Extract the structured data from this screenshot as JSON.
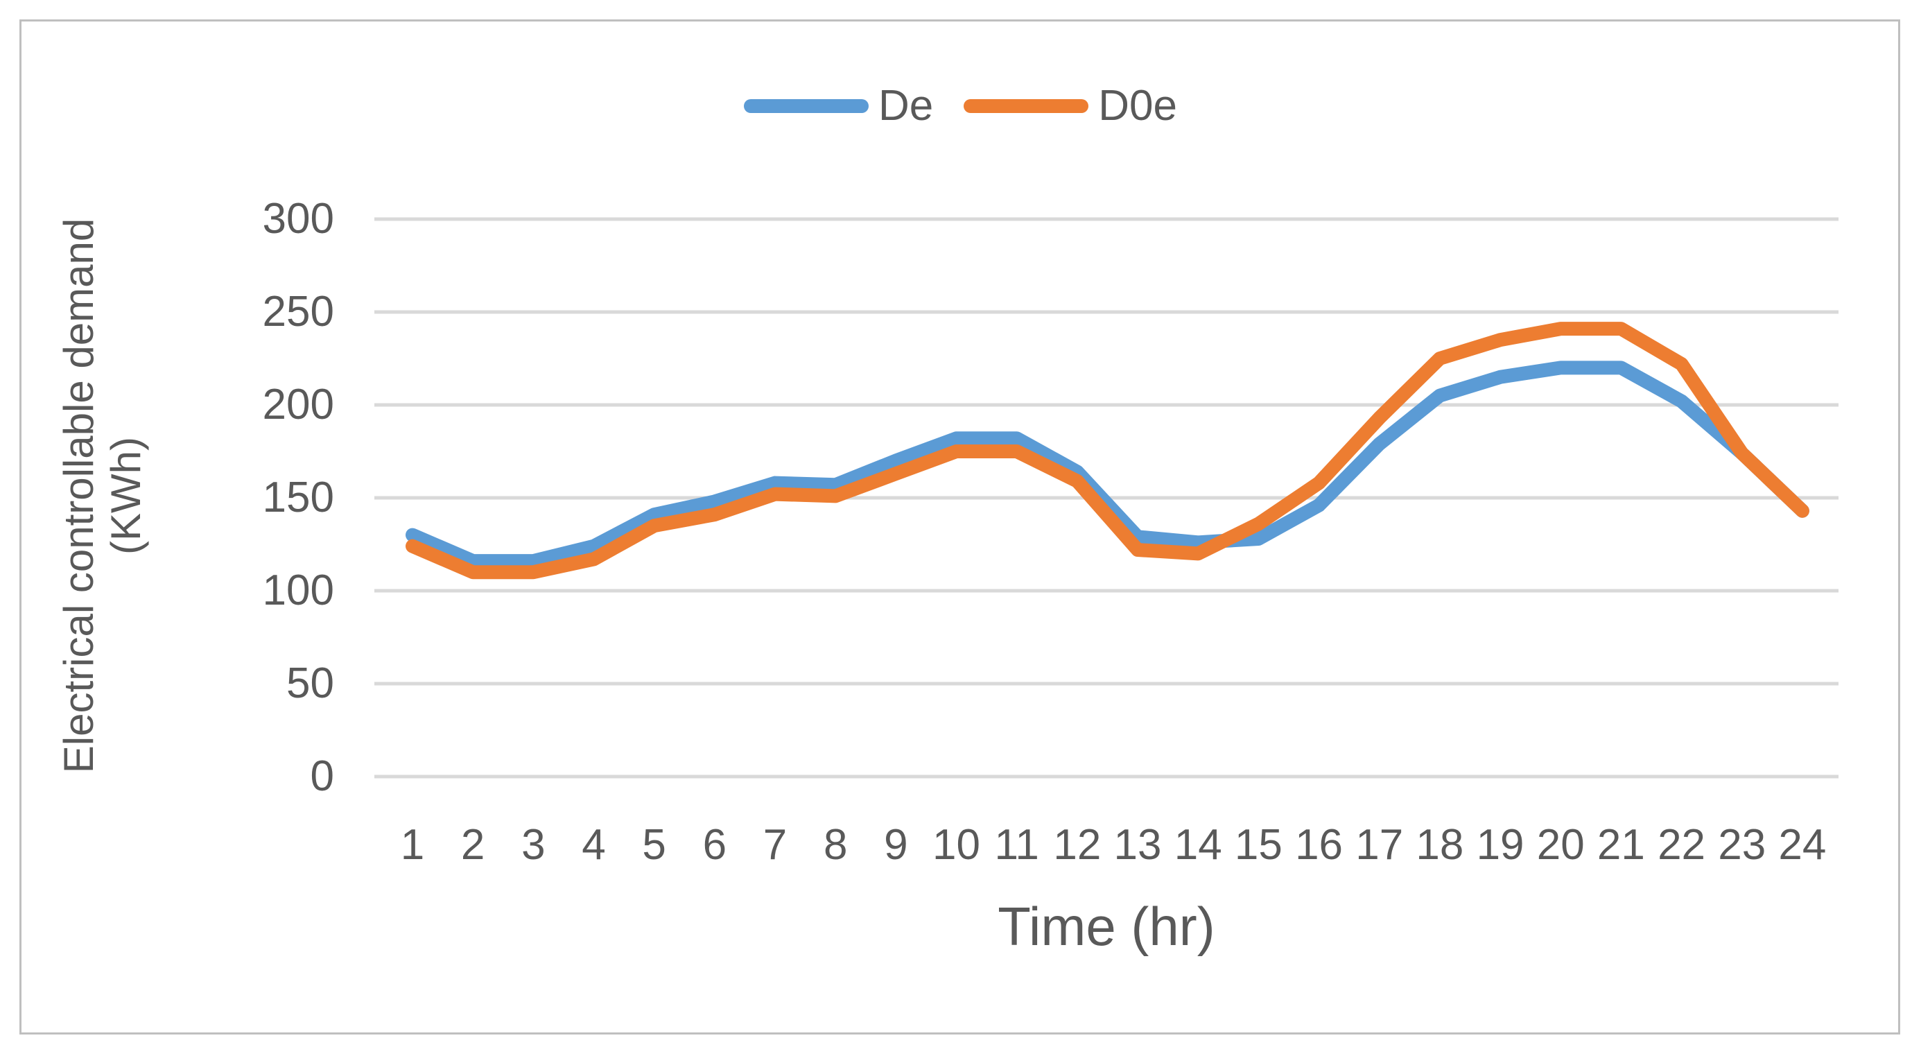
{
  "figure": {
    "background": "#FFFFFF",
    "border_color": "#BFBFBF",
    "grid_color": "#D9D9D9",
    "text_color": "#595959"
  },
  "legend": {
    "items": [
      "De",
      "D0e"
    ]
  },
  "chart_data": {
    "type": "line",
    "title": "",
    "xlabel": "Time (hr)",
    "ylabel": "Electrical controllable demand (KWh)",
    "ylabel_lines": [
      "Electrical controllable demand",
      "(KWh)"
    ],
    "x": [
      1,
      2,
      3,
      4,
      5,
      6,
      7,
      8,
      9,
      10,
      11,
      12,
      13,
      14,
      15,
      16,
      17,
      18,
      19,
      20,
      21,
      22,
      23,
      24
    ],
    "y_ticks": [
      0,
      50,
      100,
      150,
      200,
      250,
      300
    ],
    "ylim": [
      0,
      300
    ],
    "grid": true,
    "legend_position": "top-center",
    "series": [
      {
        "name": "De",
        "color": "#5B9BD5",
        "values": [
          130,
          116,
          116,
          124,
          141,
          148,
          158,
          157,
          170,
          182,
          182,
          164,
          129,
          126,
          128,
          146,
          179,
          205,
          215,
          220,
          220,
          202,
          174,
          143
        ]
      },
      {
        "name": "D0e",
        "color": "#ED7D31",
        "values": [
          124,
          110,
          110,
          117,
          135,
          141,
          152,
          151,
          163,
          175,
          175,
          159,
          122,
          120,
          136,
          158,
          193,
          225,
          235,
          241,
          241,
          222,
          174,
          143
        ]
      }
    ]
  }
}
